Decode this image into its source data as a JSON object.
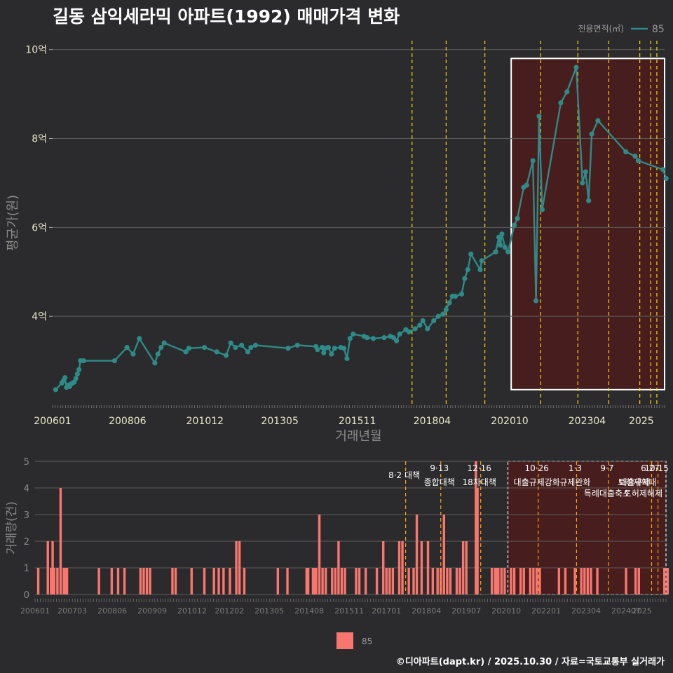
{
  "title": "길동 삼익세라믹 아파트(1992) 매매가격 변화",
  "footer": "©디아파트(dapt.kr) / 2025.10.30 / 자료=국토교통부 실거래가",
  "colors": {
    "background": "#2b2b2d",
    "line": "#2e8b88",
    "bar": "#f8766d",
    "policy_line": "#ffd700",
    "highlight_fill": "#4a1c1c",
    "grid": "#5c5c5c"
  },
  "chart_data": [
    {
      "type": "line",
      "title": "길동 삼익세라믹 아파트(1992) 매매가격 변화",
      "xlabel": "거래년월",
      "ylabel": "평균가(원)",
      "legend": {
        "title": "전용면적(㎡)",
        "entries": [
          "85"
        ],
        "placement": "top-right"
      },
      "x_ticks": [
        "200601",
        "200806",
        "201012",
        "201305",
        "201511",
        "201804",
        "202010",
        "202304",
        "2025"
      ],
      "y_ticks": [
        "4억",
        "6억",
        "8억",
        "10억"
      ],
      "ylim": [
        2.0,
        10.2
      ],
      "xlim": [
        2006.0,
        2025.75
      ],
      "series": [
        {
          "name": "85",
          "x": [
            2006.1,
            2006.3,
            2006.35,
            2006.4,
            2006.45,
            2006.5,
            2006.55,
            2006.6,
            2006.65,
            2006.7,
            2006.75,
            2006.8,
            2006.85,
            2006.9,
            2007.0,
            2008.0,
            2008.4,
            2008.6,
            2008.8,
            2009.3,
            2009.4,
            2009.5,
            2009.6,
            2010.3,
            2010.4,
            2010.9,
            2011.3,
            2011.6,
            2011.75,
            2011.9,
            2012.1,
            2012.3,
            2012.4,
            2012.55,
            2013.6,
            2013.9,
            2014.5,
            2014.55,
            2014.7,
            2014.75,
            2014.8,
            2014.9,
            2015.0,
            2015.1,
            2015.3,
            2015.4,
            2015.5,
            2015.6,
            2015.7,
            2016.05,
            2016.15,
            2016.35,
            2016.7,
            2016.9,
            2017.0,
            2017.1,
            2017.2,
            2017.4,
            2017.5,
            2017.7,
            2017.85,
            2017.95,
            2018.1,
            2018.3,
            2018.45,
            2018.6,
            2018.7,
            2018.8,
            2018.9,
            2019.0,
            2019.2,
            2019.3,
            2019.4,
            2019.5,
            2019.8,
            2019.85,
            2020.3,
            2020.4,
            2020.45,
            2020.5,
            2020.6,
            2020.7,
            2020.9,
            2021.0,
            2021.2,
            2021.3,
            2021.5,
            2021.6,
            2021.7,
            2021.8,
            2022.4,
            2022.6,
            2022.9,
            2023.1,
            2023.2,
            2023.3,
            2023.4,
            2023.6,
            2024.5,
            2024.8,
            2024.9,
            2025.7,
            2025.8
          ],
          "values": [
            2.35,
            2.5,
            2.55,
            2.62,
            2.4,
            2.45,
            2.42,
            2.48,
            2.5,
            2.52,
            2.6,
            2.7,
            2.8,
            3.0,
            3.0,
            3.0,
            3.3,
            3.15,
            3.5,
            2.95,
            3.15,
            3.3,
            3.4,
            3.2,
            3.28,
            3.3,
            3.2,
            3.12,
            3.4,
            3.3,
            3.35,
            3.2,
            3.3,
            3.35,
            3.28,
            3.35,
            3.32,
            3.25,
            3.3,
            3.18,
            3.28,
            3.3,
            3.15,
            3.28,
            3.3,
            3.28,
            3.05,
            3.5,
            3.6,
            3.55,
            3.52,
            3.5,
            3.52,
            3.55,
            3.52,
            3.45,
            3.6,
            3.7,
            3.65,
            3.72,
            3.8,
            3.9,
            3.72,
            3.9,
            4.0,
            4.05,
            4.15,
            4.3,
            4.45,
            4.45,
            4.5,
            4.85,
            5.05,
            5.4,
            5.05,
            5.25,
            5.45,
            5.78,
            5.6,
            5.85,
            5.55,
            5.45,
            6.05,
            6.2,
            6.9,
            6.95,
            7.5,
            4.35,
            8.5,
            6.4,
            8.8,
            9.05,
            9.6,
            7.0,
            7.25,
            6.6,
            8.1,
            8.4,
            7.7,
            7.6,
            7.5,
            7.3,
            7.1
          ]
        }
      ],
      "policy_events_x": [
        2017.6,
        2018.7,
        2019.95,
        2021.75,
        2022.95,
        2023.95,
        2024.95,
        2025.3,
        2025.5
      ],
      "highlight_box_x": [
        2020.8,
        2025.75
      ],
      "highlight_box_y": [
        2.35,
        9.8
      ]
    },
    {
      "type": "bar",
      "xlabel": "",
      "ylabel": "거래량(건)",
      "y_ticks": [
        "0",
        "1",
        "2",
        "3",
        "4",
        "5"
      ],
      "ylim": [
        0,
        5
      ],
      "x_ticks": [
        "200601",
        "200703",
        "200806",
        "200909",
        "201012",
        "201202",
        "201305",
        "201408",
        "201511",
        "201701",
        "201804",
        "201907",
        "202010",
        "202201",
        "202304",
        "202407",
        "2025"
      ],
      "legend": {
        "entries": [
          "85"
        ],
        "placement": "bottom"
      },
      "series": [
        {
          "name": "85",
          "x": [
            2006.1,
            2006.4,
            2006.5,
            2006.55,
            2006.6,
            2006.7,
            2006.8,
            2006.9,
            2006.95,
            2007.0,
            2008.0,
            2008.4,
            2008.6,
            2008.8,
            2009.3,
            2009.4,
            2009.5,
            2009.6,
            2010.3,
            2010.4,
            2010.9,
            2011.3,
            2011.6,
            2011.75,
            2011.9,
            2012.1,
            2012.3,
            2012.4,
            2012.55,
            2013.6,
            2013.9,
            2014.5,
            2014.55,
            2014.7,
            2014.75,
            2014.8,
            2014.9,
            2015.0,
            2015.1,
            2015.3,
            2015.4,
            2015.5,
            2015.6,
            2015.7,
            2016.05,
            2016.15,
            2016.35,
            2016.7,
            2016.9,
            2017.0,
            2017.1,
            2017.2,
            2017.4,
            2017.5,
            2017.7,
            2017.85,
            2017.95,
            2018.1,
            2018.3,
            2018.45,
            2018.6,
            2018.7,
            2018.8,
            2018.9,
            2019.0,
            2019.2,
            2019.3,
            2019.4,
            2019.5,
            2019.8,
            2019.85,
            2020.3,
            2020.4,
            2020.45,
            2020.5,
            2020.6,
            2020.7,
            2020.9,
            2021.0,
            2021.2,
            2021.3,
            2021.5,
            2021.6,
            2021.7,
            2021.8,
            2022.4,
            2022.6,
            2022.9,
            2023.1,
            2023.2,
            2023.3,
            2023.4,
            2023.6,
            2024.5,
            2024.8,
            2024.9,
            2025.7,
            2025.8
          ],
          "values": [
            1,
            2,
            1,
            2,
            1,
            1,
            4,
            1,
            1,
            1,
            1,
            1,
            1,
            1,
            1,
            1,
            1,
            1,
            1,
            1,
            1,
            1,
            1,
            1,
            1,
            1,
            2,
            2,
            1,
            1,
            1,
            1,
            1,
            1,
            1,
            1,
            3,
            1,
            1,
            1,
            1,
            2,
            1,
            1,
            1,
            1,
            1,
            1,
            2,
            1,
            1,
            1,
            2,
            2,
            1,
            1,
            3,
            2,
            2,
            1,
            1,
            1,
            3,
            1,
            1,
            1,
            1,
            2,
            2,
            5,
            4,
            1,
            1,
            1,
            1,
            1,
            1,
            1,
            1,
            1,
            1,
            1,
            1,
            1,
            1,
            1,
            1,
            1,
            1,
            1,
            1,
            1,
            1,
            1,
            1,
            1,
            1,
            1
          ]
        }
      ],
      "policy_events": [
        {
          "x": 2017.6,
          "date": "",
          "label": "8·2 대책"
        },
        {
          "x": 2018.7,
          "date": "9·13",
          "label": "종합대책"
        },
        {
          "x": 2019.95,
          "date": "12·16",
          "label": "18차대책"
        },
        {
          "x": 2021.75,
          "date": "10·26",
          "label": "대출규제강화"
        },
        {
          "x": 2022.95,
          "date": "1·3",
          "label": "규제완화"
        },
        {
          "x": 2023.95,
          "date": "9·7",
          "label": "특례대출축소"
        },
        {
          "x": 2025.3,
          "date": "6·27",
          "label": "대출규제"
        },
        {
          "x": 2025.5,
          "date": "10·15",
          "label": "토허제확대"
        }
      ],
      "extra_annotations": [
        "토허제해제"
      ],
      "highlight_box_x": [
        2020.8,
        2025.75
      ]
    }
  ]
}
